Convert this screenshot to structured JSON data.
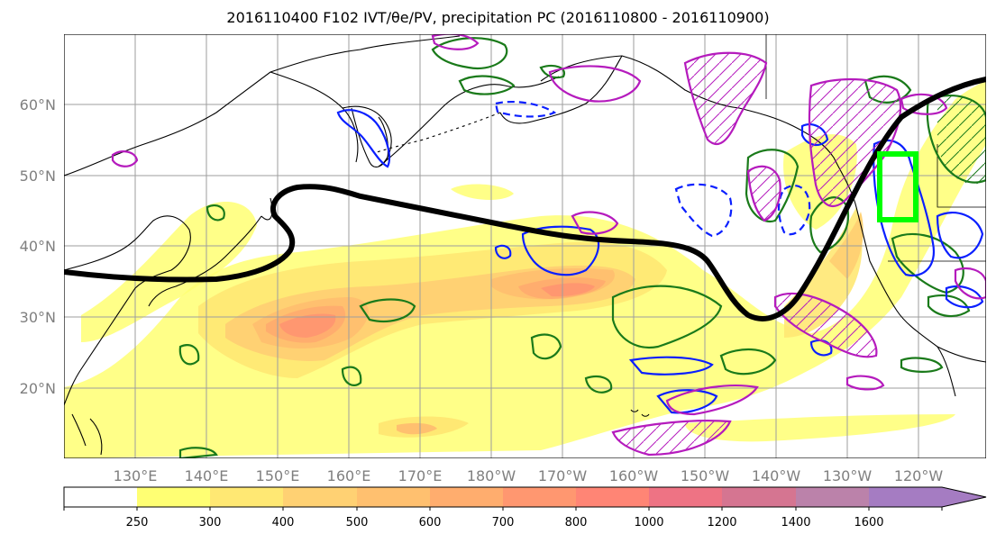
{
  "title": "2016110400 F102 IVT/θe/PV, precipitation PC (2016110800 - 2016110900)",
  "map": {
    "lat_labels": [
      "60°N",
      "50°N",
      "40°N",
      "30°N",
      "20°N"
    ],
    "lon_labels": [
      "130°E",
      "140°E",
      "150°E",
      "160°E",
      "170°E",
      "180°W",
      "170°W",
      "160°W",
      "150°W",
      "140°W",
      "130°W",
      "120°W"
    ],
    "colors": {
      "ocean": "#ffffff",
      "coast": "#000000",
      "grid": "#9e9e9e",
      "jet_line": "#000000",
      "green_contour": "#1a7a1a",
      "blue_contour": "#0a1fff",
      "magenta_contour": "#b51bbd",
      "target_box": "#00ff00"
    }
  },
  "colorbar": {
    "ticks": [
      "250",
      "300",
      "400",
      "500",
      "600",
      "700",
      "800",
      "1000",
      "1200",
      "1400",
      "1600"
    ],
    "colors": [
      "#ffffff",
      "#ffff73",
      "#ffe873",
      "#ffd173",
      "#ffc06f",
      "#ffad6e",
      "#ff9770",
      "#ff8575",
      "#ee7384",
      "#d57591",
      "#bb82aa",
      "#a57cc2"
    ]
  }
}
